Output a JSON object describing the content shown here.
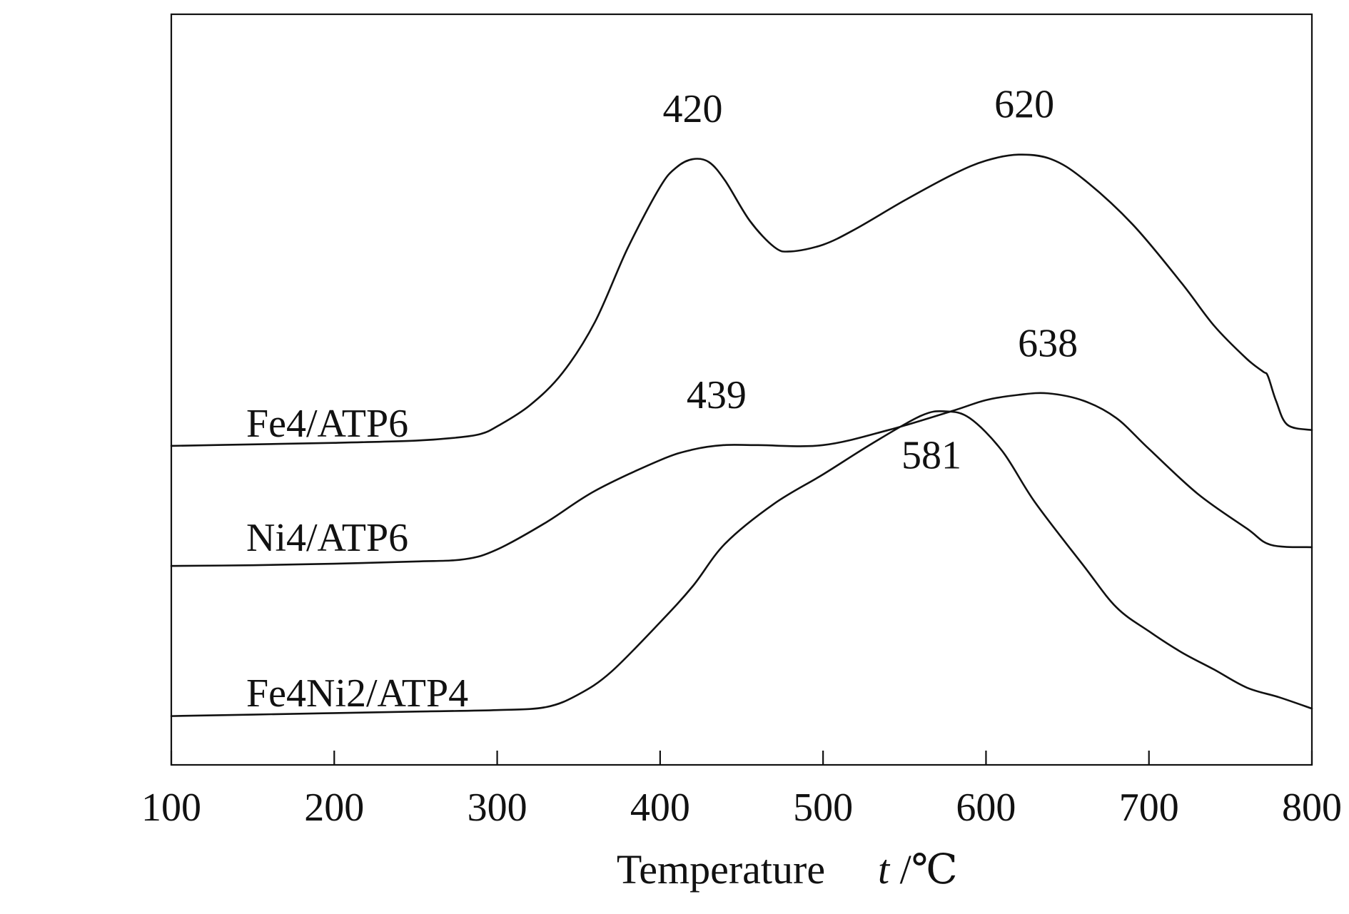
{
  "chart_data": {
    "type": "line",
    "xlabel": "Temperature",
    "xlabel_unit": "t /℃",
    "ylabel": "",
    "xlim": [
      100,
      800
    ],
    "ylim": [
      0,
      1
    ],
    "grid": false,
    "xticks": [
      100,
      200,
      300,
      400,
      500,
      600,
      700,
      800
    ],
    "series": [
      {
        "name": "Fe4/ATP6",
        "points": [
          [
            100,
            0.425
          ],
          [
            150,
            0.427
          ],
          [
            200,
            0.429
          ],
          [
            250,
            0.432
          ],
          [
            275,
            0.436
          ],
          [
            290,
            0.441
          ],
          [
            300,
            0.451
          ],
          [
            320,
            0.479
          ],
          [
            340,
            0.522
          ],
          [
            360,
            0.59
          ],
          [
            380,
            0.688
          ],
          [
            400,
            0.77
          ],
          [
            410,
            0.796
          ],
          [
            420,
            0.807
          ],
          [
            430,
            0.803
          ],
          [
            440,
            0.778
          ],
          [
            455,
            0.725
          ],
          [
            470,
            0.69
          ],
          [
            480,
            0.684
          ],
          [
            500,
            0.693
          ],
          [
            520,
            0.714
          ],
          [
            550,
            0.752
          ],
          [
            580,
            0.787
          ],
          [
            600,
            0.805
          ],
          [
            620,
            0.813
          ],
          [
            640,
            0.807
          ],
          [
            660,
            0.78
          ],
          [
            690,
            0.72
          ],
          [
            720,
            0.642
          ],
          [
            740,
            0.585
          ],
          [
            760,
            0.541
          ],
          [
            770,
            0.524
          ],
          [
            773,
            0.518
          ],
          [
            778,
            0.485
          ],
          [
            785,
            0.453
          ],
          [
            800,
            0.446
          ]
        ]
      },
      {
        "name": "Ni4/ATP6",
        "points": [
          [
            100,
            0.265
          ],
          [
            150,
            0.266
          ],
          [
            200,
            0.268
          ],
          [
            250,
            0.271
          ],
          [
            280,
            0.274
          ],
          [
            300,
            0.287
          ],
          [
            330,
            0.323
          ],
          [
            360,
            0.365
          ],
          [
            400,
            0.406
          ],
          [
            420,
            0.42
          ],
          [
            439,
            0.426
          ],
          [
            460,
            0.426
          ],
          [
            500,
            0.426
          ],
          [
            540,
            0.446
          ],
          [
            580,
            0.472
          ],
          [
            600,
            0.486
          ],
          [
            620,
            0.493
          ],
          [
            638,
            0.495
          ],
          [
            660,
            0.485
          ],
          [
            680,
            0.462
          ],
          [
            700,
            0.421
          ],
          [
            730,
            0.361
          ],
          [
            760,
            0.315
          ],
          [
            775,
            0.293
          ],
          [
            800,
            0.29
          ]
        ]
      },
      {
        "name": "Fe4Ni2/ATP4",
        "points": [
          [
            100,
            0.065
          ],
          [
            150,
            0.067
          ],
          [
            200,
            0.069
          ],
          [
            250,
            0.071
          ],
          [
            300,
            0.073
          ],
          [
            330,
            0.077
          ],
          [
            350,
            0.094
          ],
          [
            370,
            0.124
          ],
          [
            400,
            0.19
          ],
          [
            420,
            0.238
          ],
          [
            440,
            0.295
          ],
          [
            470,
            0.348
          ],
          [
            500,
            0.387
          ],
          [
            530,
            0.428
          ],
          [
            560,
            0.465
          ],
          [
            575,
            0.471
          ],
          [
            590,
            0.462
          ],
          [
            610,
            0.418
          ],
          [
            630,
            0.35
          ],
          [
            660,
            0.265
          ],
          [
            680,
            0.21
          ],
          [
            700,
            0.178
          ],
          [
            720,
            0.15
          ],
          [
            740,
            0.127
          ],
          [
            760,
            0.103
          ],
          [
            780,
            0.09
          ],
          [
            800,
            0.075
          ]
        ]
      }
    ],
    "annotations": [
      {
        "text": "420",
        "x": 420,
        "y": 0.807,
        "series": "Fe4/ATP6"
      },
      {
        "text": "620",
        "x": 620,
        "y": 0.813,
        "series": "Fe4/ATP6"
      },
      {
        "text": "439",
        "x": 439,
        "y": 0.426,
        "series": "Ni4/ATP6"
      },
      {
        "text": "638",
        "x": 638,
        "y": 0.495,
        "series": "Ni4/ATP6"
      },
      {
        "text": "581",
        "x": 581,
        "y": 0.471,
        "series": "Fe4Ni2/ATP4"
      }
    ]
  },
  "colors": {
    "line": "#111111",
    "axis": "#111111",
    "background": "#ffffff"
  }
}
